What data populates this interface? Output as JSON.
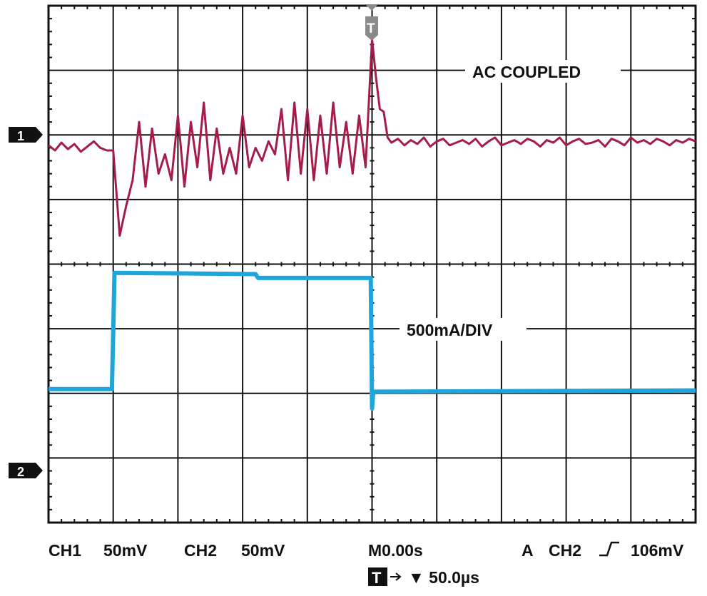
{
  "chart_data": {
    "type": "line",
    "title": "",
    "grid": true,
    "x_divisions": 10,
    "y_divisions": 8,
    "time_per_div_us": 50,
    "xlim_us": [
      -250,
      250
    ],
    "colors": {
      "ch1": "#a51c4b",
      "ch2": "#1ea5dc",
      "grid": "#111111"
    },
    "annotations": {
      "ch1": "AC COUPLED",
      "ch2": "500mA/DIV"
    },
    "markers": {
      "ch1": "1",
      "ch2": "2",
      "trigger": "T"
    },
    "series": [
      {
        "channel": "CH1",
        "scale": "50mV",
        "unit": "mV",
        "points": [
          [
            -250,
            -8
          ],
          [
            -245,
            -12
          ],
          [
            -240,
            -6
          ],
          [
            -235,
            -11
          ],
          [
            -230,
            -7
          ],
          [
            -225,
            -13
          ],
          [
            -220,
            -9
          ],
          [
            -215,
            -5
          ],
          [
            -210,
            -10
          ],
          [
            -205,
            -12
          ],
          [
            -200,
            -12
          ],
          [
            -195,
            -78
          ],
          [
            -190,
            -55
          ],
          [
            -185,
            -35
          ],
          [
            -180,
            10
          ],
          [
            -175,
            -40
          ],
          [
            -170,
            5
          ],
          [
            -165,
            -30
          ],
          [
            -160,
            -15
          ],
          [
            -155,
            -35
          ],
          [
            -150,
            15
          ],
          [
            -145,
            -40
          ],
          [
            -140,
            10
          ],
          [
            -135,
            -25
          ],
          [
            -130,
            25
          ],
          [
            -125,
            -35
          ],
          [
            -120,
            5
          ],
          [
            -115,
            -30
          ],
          [
            -110,
            -10
          ],
          [
            -105,
            -30
          ],
          [
            -100,
            15
          ],
          [
            -95,
            -25
          ],
          [
            -90,
            -10
          ],
          [
            -85,
            -20
          ],
          [
            -80,
            -5
          ],
          [
            -75,
            -15
          ],
          [
            -70,
            20
          ],
          [
            -65,
            -35
          ],
          [
            -60,
            25
          ],
          [
            -55,
            -30
          ],
          [
            -50,
            20
          ],
          [
            -45,
            -35
          ],
          [
            -40,
            15
          ],
          [
            -35,
            -30
          ],
          [
            -30,
            25
          ],
          [
            -25,
            -25
          ],
          [
            -20,
            10
          ],
          [
            -15,
            -30
          ],
          [
            -10,
            15
          ],
          [
            -5,
            -25
          ],
          [
            0,
            74
          ],
          [
            3,
            45
          ],
          [
            6,
            20
          ],
          [
            9,
            18
          ],
          [
            12,
            -2
          ],
          [
            15,
            -6
          ],
          [
            20,
            -3
          ],
          [
            25,
            -8
          ],
          [
            30,
            -4
          ],
          [
            35,
            -7
          ],
          [
            40,
            -2
          ],
          [
            45,
            -9
          ],
          [
            50,
            -5
          ],
          [
            55,
            -3
          ],
          [
            60,
            -8
          ],
          [
            65,
            -6
          ],
          [
            70,
            -4
          ],
          [
            75,
            -7
          ],
          [
            80,
            -3
          ],
          [
            85,
            -9
          ],
          [
            90,
            -5
          ],
          [
            95,
            -2
          ],
          [
            100,
            -8
          ],
          [
            105,
            -6
          ],
          [
            110,
            -4
          ],
          [
            115,
            -7
          ],
          [
            120,
            -3
          ],
          [
            125,
            -5
          ],
          [
            130,
            -9
          ],
          [
            135,
            -4
          ],
          [
            140,
            -6
          ],
          [
            145,
            -2
          ],
          [
            150,
            -8
          ],
          [
            155,
            -5
          ],
          [
            160,
            -3
          ],
          [
            165,
            -7
          ],
          [
            170,
            -6
          ],
          [
            175,
            -4
          ],
          [
            180,
            -9
          ],
          [
            185,
            -3
          ],
          [
            190,
            -5
          ],
          [
            195,
            -8
          ],
          [
            200,
            -2
          ],
          [
            205,
            -6
          ],
          [
            210,
            -4
          ],
          [
            215,
            -7
          ],
          [
            220,
            -3
          ],
          [
            225,
            -5
          ],
          [
            230,
            -8
          ],
          [
            235,
            -4
          ],
          [
            240,
            -6
          ],
          [
            245,
            -3
          ],
          [
            250,
            -5
          ]
        ]
      },
      {
        "channel": "CH2",
        "scale": "50mV",
        "unit": "mV",
        "points": [
          [
            -250,
            63
          ],
          [
            -201,
            63
          ],
          [
            -199,
            153
          ],
          [
            -90,
            152
          ],
          [
            -88,
            149
          ],
          [
            -1,
            149
          ],
          [
            0,
            48
          ],
          [
            1,
            61
          ],
          [
            250,
            62
          ]
        ]
      }
    ]
  },
  "readout": {
    "ch1_label": "CH1",
    "ch1_scale": "50mV",
    "ch2_label": "CH2",
    "ch2_scale": "50mV",
    "timebase": "M0.00s",
    "trigger_source_prefix": "A",
    "trigger_source": "CH2",
    "trigger_slope_icon": "rising-edge",
    "trigger_level": "106mV",
    "trigger_box": "T",
    "trigger_position": "▼ 50.0µs"
  }
}
